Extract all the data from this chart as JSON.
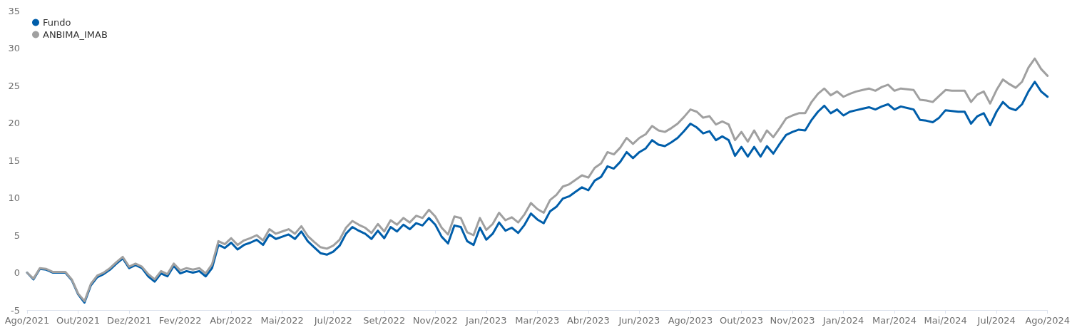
{
  "chart_data": {
    "type": "line",
    "marker": "none",
    "line_style": "solid",
    "grid": false,
    "legend": "top left",
    "categories": [
      "Ago/2021",
      null,
      null,
      null,
      null,
      null,
      null,
      null,
      "Out/2021",
      null,
      null,
      null,
      null,
      null,
      null,
      null,
      "Dez/2021",
      null,
      null,
      null,
      null,
      null,
      null,
      null,
      "Fev/2022",
      null,
      null,
      null,
      null,
      null,
      null,
      null,
      "Abr/2022",
      null,
      null,
      null,
      null,
      null,
      null,
      null,
      "Mai/2022",
      null,
      null,
      null,
      null,
      null,
      null,
      null,
      "Jul/2022",
      null,
      null,
      null,
      null,
      null,
      null,
      null,
      "Set/2022",
      null,
      null,
      null,
      null,
      null,
      null,
      null,
      "Nov/2022",
      null,
      null,
      null,
      null,
      null,
      null,
      null,
      "Jan/2023",
      null,
      null,
      null,
      null,
      null,
      null,
      null,
      "Mar/2023",
      null,
      null,
      null,
      null,
      null,
      null,
      null,
      "Abr/2023",
      null,
      null,
      null,
      null,
      null,
      null,
      null,
      "Jun/2023",
      null,
      null,
      null,
      null,
      null,
      null,
      null,
      "Ago/2023",
      null,
      null,
      null,
      null,
      null,
      null,
      null,
      "Out/2023",
      null,
      null,
      null,
      null,
      null,
      null,
      null,
      "Nov/2023",
      null,
      null,
      null,
      null,
      null,
      null,
      null,
      "Jan/2024",
      null,
      null,
      null,
      null,
      null,
      null,
      null,
      "Mar/2024",
      null,
      null,
      null,
      null,
      null,
      null,
      null,
      "Mai/2024",
      null,
      null,
      null,
      null,
      null,
      null,
      null,
      "Jul/2024",
      null,
      null,
      null,
      null,
      null,
      null,
      null,
      "Ago/2024"
    ],
    "ylim": [
      -5,
      35
    ],
    "yticks": [
      -5,
      0,
      5,
      10,
      15,
      20,
      25,
      30,
      35
    ],
    "series": [
      {
        "name": "Fundo",
        "color": "#005eaa",
        "values": [
          0,
          -0.9,
          0.5,
          0.4,
          0,
          0,
          0,
          -1,
          -2.9,
          -4.0,
          -1.7,
          -0.6,
          -0.2,
          0.4,
          1.2,
          1.9,
          0.6,
          1.0,
          0.6,
          -0.5,
          -1.2,
          -0.1,
          -0.5,
          0.9,
          -0.1,
          0.2,
          0,
          0.2,
          -0.5,
          0.6,
          3.7,
          3.3,
          4.0,
          3.1,
          3.7,
          4.0,
          4.4,
          3.7,
          5.1,
          4.5,
          4.8,
          5.1,
          4.5,
          5.5,
          4.2,
          3.4,
          2.6,
          2.4,
          2.8,
          3.6,
          5.2,
          6.1,
          5.6,
          5.2,
          4.5,
          5.6,
          4.6,
          6.1,
          5.5,
          6.4,
          5.8,
          6.6,
          6.3,
          7.3,
          6.4,
          4.8,
          3.9,
          6.3,
          6.1,
          4.2,
          3.7,
          6.0,
          4.4,
          5.2,
          6.7,
          5.6,
          6.0,
          5.3,
          6.4,
          7.9,
          7.1,
          6.6,
          8.2,
          8.8,
          9.9,
          10.2,
          10.8,
          11.4,
          11.0,
          12.3,
          12.8,
          14.2,
          13.9,
          14.8,
          16.1,
          15.3,
          16.1,
          16.6,
          17.7,
          17.1,
          16.9,
          17.4,
          18.0,
          18.9,
          19.9,
          19.4,
          18.6,
          18.9,
          17.7,
          18.2,
          17.7,
          15.6,
          16.8,
          15.5,
          16.8,
          15.5,
          16.9,
          15.9,
          17.2,
          18.4,
          18.8,
          19.1,
          19.0,
          20.4,
          21.5,
          22.3,
          21.3,
          21.8,
          21.0,
          21.5,
          21.7,
          21.9,
          22.1,
          21.8,
          22.2,
          22.5,
          21.8,
          22.2,
          22.0,
          21.8,
          20.4,
          20.3,
          20.1,
          20.7,
          21.7,
          21.6,
          21.5,
          21.5,
          19.9,
          20.9,
          21.3,
          19.7,
          21.5,
          22.8,
          22.0,
          21.7,
          22.5,
          24.2,
          25.5,
          24.2,
          23.5
        ]
      },
      {
        "name": "ANBIMA_IMAB",
        "color": "#a0a0a0",
        "values": [
          0,
          -0.8,
          0.6,
          0.5,
          0.1,
          0.1,
          0.1,
          -0.9,
          -2.8,
          -3.8,
          -1.5,
          -0.4,
          0,
          0.6,
          1.4,
          2.1,
          0.8,
          1.2,
          0.8,
          -0.2,
          -0.9,
          0.2,
          -0.2,
          1.2,
          0.3,
          0.6,
          0.4,
          0.6,
          -0.1,
          1.1,
          4.2,
          3.8,
          4.6,
          3.7,
          4.3,
          4.6,
          5.0,
          4.3,
          5.8,
          5.2,
          5.5,
          5.8,
          5.2,
          6.2,
          4.9,
          4.1,
          3.4,
          3.2,
          3.6,
          4.4,
          6.0,
          6.9,
          6.4,
          6.0,
          5.3,
          6.5,
          5.5,
          7.0,
          6.4,
          7.3,
          6.7,
          7.6,
          7.3,
          8.4,
          7.5,
          6.0,
          5.1,
          7.5,
          7.3,
          5.4,
          5.0,
          7.3,
          5.7,
          6.5,
          8.0,
          7.0,
          7.4,
          6.7,
          7.8,
          9.3,
          8.5,
          8.0,
          9.7,
          10.4,
          11.5,
          11.8,
          12.4,
          13.0,
          12.7,
          14.0,
          14.6,
          16.1,
          15.8,
          16.7,
          18.0,
          17.2,
          18.0,
          18.5,
          19.6,
          19.0,
          18.8,
          19.3,
          19.9,
          20.8,
          21.8,
          21.5,
          20.7,
          20.9,
          19.8,
          20.2,
          19.8,
          17.7,
          18.8,
          17.5,
          19.0,
          17.5,
          19.0,
          18.1,
          19.3,
          20.6,
          21.0,
          21.3,
          21.3,
          22.8,
          23.9,
          24.6,
          23.7,
          24.2,
          23.5,
          23.9,
          24.2,
          24.4,
          24.6,
          24.3,
          24.8,
          25.1,
          24.3,
          24.6,
          24.5,
          24.4,
          23.1,
          23.0,
          22.8,
          23.6,
          24.4,
          24.3,
          24.3,
          24.3,
          22.8,
          23.8,
          24.2,
          22.6,
          24.4,
          25.8,
          25.2,
          24.7,
          25.5,
          27.4,
          28.6,
          27.2,
          26.3
        ]
      }
    ]
  }
}
